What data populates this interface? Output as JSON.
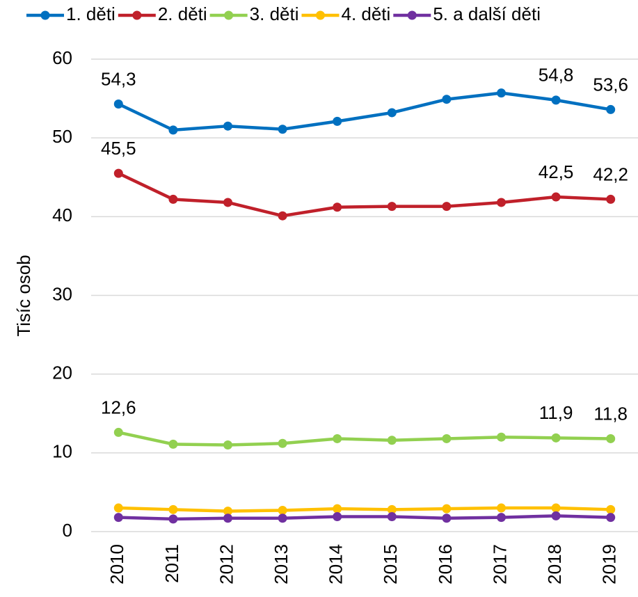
{
  "chart_data": {
    "type": "line",
    "y_label": "Tisíc osob",
    "categories": [
      "2010",
      "2011",
      "2012",
      "2013",
      "2014",
      "2015",
      "2016",
      "2017",
      "2018",
      "2019"
    ],
    "series": [
      {
        "name": "1. děti",
        "color": "#0070c0",
        "values": [
          54.3,
          51.0,
          51.5,
          51.1,
          52.1,
          53.2,
          54.9,
          55.7,
          54.8,
          53.6
        ],
        "value_labels": [
          "54,3",
          null,
          null,
          null,
          null,
          null,
          null,
          null,
          "54,8",
          "53,6"
        ]
      },
      {
        "name": "2. děti",
        "color": "#c0202a",
        "values": [
          45.5,
          42.2,
          41.8,
          40.1,
          41.2,
          41.3,
          41.3,
          41.8,
          42.5,
          42.2
        ],
        "value_labels": [
          "45,5",
          null,
          null,
          null,
          null,
          null,
          null,
          null,
          "42,5",
          "42,2"
        ]
      },
      {
        "name": "3. děti",
        "color": "#92d050",
        "values": [
          12.6,
          11.1,
          11.0,
          11.2,
          11.8,
          11.6,
          11.8,
          12.0,
          11.9,
          11.8
        ],
        "value_labels": [
          "12,6",
          null,
          null,
          null,
          null,
          null,
          null,
          null,
          "11,9",
          "11,8"
        ]
      },
      {
        "name": "4. děti",
        "color": "#ffc000",
        "values": [
          3.0,
          2.8,
          2.6,
          2.7,
          2.9,
          2.8,
          2.9,
          3.0,
          3.0,
          2.8
        ]
      },
      {
        "name": "5. a další děti",
        "color": "#7030a0",
        "values": [
          1.8,
          1.6,
          1.7,
          1.7,
          1.9,
          1.9,
          1.7,
          1.8,
          2.0,
          1.8
        ]
      }
    ],
    "ylim": [
      0,
      60
    ],
    "yticks": [
      0,
      10,
      20,
      30,
      40,
      50,
      60
    ],
    "grid": true,
    "legend": "top"
  }
}
